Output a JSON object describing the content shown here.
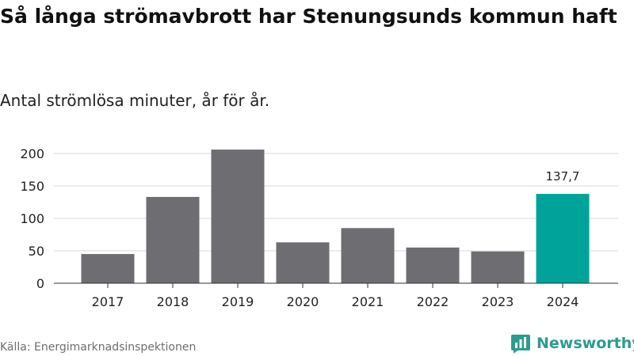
{
  "header": {
    "title": "Så långa strömavbrott har Stenungsunds kommun haft",
    "subtitle": "Antal strömlösa minuter, år för år."
  },
  "footer": {
    "source": "Källa: Energimarknadsinspektionen",
    "brand": "Newsworthy"
  },
  "colors": {
    "bar": "#6e6d72",
    "highlight": "#00a39a",
    "grid": "#d9d9d9",
    "axis": "#333333",
    "brand": "#2a9d8f"
  },
  "icons": {
    "brand_logo": "bar-chart-logo-icon"
  },
  "chart_data": {
    "type": "bar",
    "title": "Så långa strömavbrott har Stenungsunds kommun haft",
    "subtitle": "Antal strömlösa minuter, år för år.",
    "xlabel": "",
    "ylabel": "",
    "categories": [
      "2017",
      "2018",
      "2019",
      "2020",
      "2021",
      "2022",
      "2023",
      "2024"
    ],
    "values": [
      45,
      133,
      206,
      63,
      85,
      55,
      49,
      137.7
    ],
    "highlight_index": 7,
    "data_labels": [
      {
        "index": 7,
        "text": "137,7"
      }
    ],
    "ylim": [
      0,
      200
    ],
    "yticks": [
      0,
      50,
      100,
      150,
      200
    ],
    "ytick_labels": [
      "0",
      "50",
      "100",
      "150",
      "200"
    ],
    "grid": true,
    "legend": "none"
  }
}
